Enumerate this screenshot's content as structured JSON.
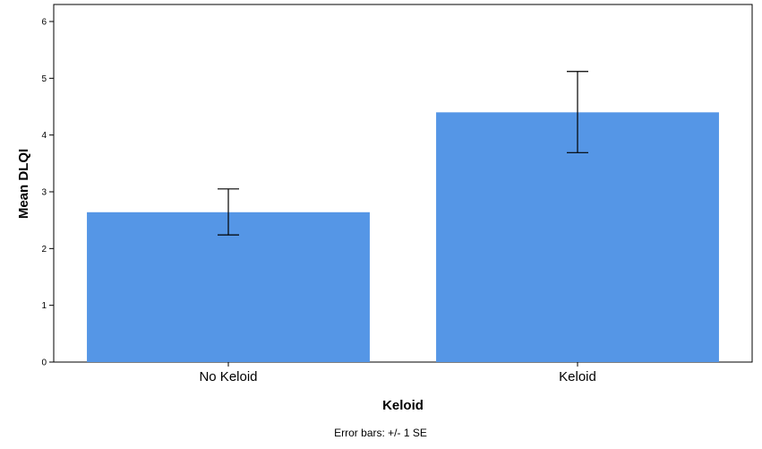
{
  "chart_data": {
    "type": "bar",
    "title": "",
    "categories": [
      "No Keloid",
      "Keloid"
    ],
    "values": [
      2.64,
      4.4
    ],
    "error_bars": {
      "lower": [
        2.24,
        3.69
      ],
      "upper": [
        3.05,
        5.12
      ]
    },
    "xlabel": "Keloid",
    "ylabel": "Mean DLQI",
    "ylim": [
      0,
      6.3
    ],
    "yticks": [
      0,
      1,
      2,
      3,
      4,
      5,
      6
    ],
    "grid": false,
    "footnote": "Error bars: +/- 1 SE",
    "colors": {
      "bar": "#5596e6",
      "axis": "#000000",
      "error_bar": "#000000"
    }
  }
}
